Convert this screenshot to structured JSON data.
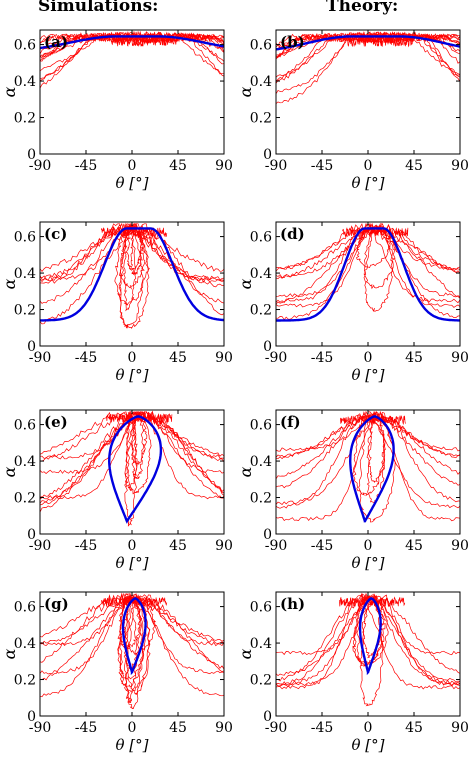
{
  "columns": {
    "left_title": "Simulations:",
    "right_title": "Theory:"
  },
  "colors": {
    "trajectories": "#ff0000",
    "curve": "#0000e0",
    "axis": "#000000"
  },
  "chart_data": [
    {
      "id": "a",
      "panel_label": "(a)",
      "type": "line",
      "xlabel": "θ [°]",
      "ylabel": "α",
      "xlim": [
        -90,
        90
      ],
      "ylim": [
        0,
        0.68
      ],
      "xticks": [
        "-90",
        "-45",
        "0",
        "45",
        "90"
      ],
      "yticks": [
        "0",
        "0.2",
        "0.4",
        "0.6"
      ],
      "blue_curve": {
        "shape": "band",
        "bottom": 0.56,
        "top": 0.645,
        "flat_from": -15,
        "flat_to": 25
      },
      "red_trajectories": {
        "count": 14,
        "seed": 11,
        "style": "broad",
        "center": 10,
        "peak": 0.64,
        "min_low": 0.2,
        "width": 60,
        "noise": 0.02
      }
    },
    {
      "id": "b",
      "panel_label": "(b)",
      "type": "line",
      "xlabel": "θ [°]",
      "ylabel": "α",
      "xlim": [
        -90,
        90
      ],
      "ylim": [
        0,
        0.68
      ],
      "xticks": [
        "-90",
        "-45",
        "0",
        "45",
        "90"
      ],
      "yticks": [
        "0",
        "0.2",
        "0.4",
        "0.6"
      ],
      "blue_curve": {
        "shape": "band",
        "bottom": 0.55,
        "top": 0.645,
        "flat_from": -15,
        "flat_to": 30
      },
      "red_trajectories": {
        "count": 14,
        "seed": 23,
        "style": "broad",
        "center": 10,
        "peak": 0.64,
        "min_low": 0.22,
        "width": 60,
        "noise": 0.02
      }
    },
    {
      "id": "c",
      "panel_label": "(c)",
      "type": "line",
      "xlabel": "θ [°]",
      "ylabel": "α",
      "xlim": [
        -90,
        90
      ],
      "ylim": [
        0,
        0.68
      ],
      "xticks": [
        "-90",
        "-45",
        "0",
        "45",
        "90"
      ],
      "yticks": [
        "0",
        "0.2",
        "0.4",
        "0.6"
      ],
      "blue_curve": {
        "shape": "bell",
        "base": 0.14,
        "top": 0.645,
        "flat_from": -5,
        "flat_to": 18,
        "width": 22
      },
      "red_trajectories": {
        "count": 14,
        "seed": 37,
        "style": "mixed",
        "center": 0,
        "peak": 0.65,
        "min_low": 0.1,
        "width": 30,
        "noise": 0.025
      }
    },
    {
      "id": "d",
      "panel_label": "(d)",
      "type": "line",
      "xlabel": "θ [°]",
      "ylabel": "α",
      "xlim": [
        -90,
        90
      ],
      "ylim": [
        0,
        0.68
      ],
      "xticks": [
        "-90",
        "-45",
        "0",
        "45",
        "90"
      ],
      "yticks": [
        "0",
        "0.2",
        "0.4",
        "0.6"
      ],
      "blue_curve": {
        "shape": "bell",
        "base": 0.14,
        "top": 0.645,
        "flat_from": -3,
        "flat_to": 15,
        "width": 20
      },
      "red_trajectories": {
        "count": 12,
        "seed": 51,
        "style": "mixed",
        "center": 5,
        "peak": 0.65,
        "min_low": 0.12,
        "width": 28,
        "noise": 0.02
      }
    },
    {
      "id": "e",
      "panel_label": "(e)",
      "type": "line",
      "xlabel": "θ [°]",
      "ylabel": "α",
      "xlim": [
        -90,
        90
      ],
      "ylim": [
        0,
        0.68
      ],
      "xticks": [
        "-90",
        "-45",
        "0",
        "45",
        "90"
      ],
      "yticks": [
        "0",
        "0.2",
        "0.4",
        "0.6"
      ],
      "blue_curve": {
        "shape": "loop",
        "cx": -5,
        "halfwidth": 25,
        "bottom": 0.07,
        "top": 0.645,
        "skew": 14
      },
      "red_trajectories": {
        "count": 14,
        "seed": 67,
        "style": "mixed",
        "center": 5,
        "peak": 0.66,
        "min_low": 0.05,
        "width": 32,
        "noise": 0.02
      }
    },
    {
      "id": "f",
      "panel_label": "(f)",
      "type": "line",
      "xlabel": "θ [°]",
      "ylabel": "α",
      "xlim": [
        -90,
        90
      ],
      "ylim": [
        0,
        0.68
      ],
      "xticks": [
        "-90",
        "-45",
        "0",
        "45",
        "90"
      ],
      "yticks": [
        "0",
        "0.2",
        "0.4",
        "0.6"
      ],
      "blue_curve": {
        "shape": "loop",
        "cx": -3,
        "halfwidth": 21,
        "bottom": 0.07,
        "top": 0.645,
        "skew": 12
      },
      "red_trajectories": {
        "count": 12,
        "seed": 79,
        "style": "mixed",
        "center": 3,
        "peak": 0.65,
        "min_low": 0.06,
        "width": 28,
        "noise": 0.02
      }
    },
    {
      "id": "g",
      "panel_label": "(g)",
      "type": "line",
      "xlabel": "θ [°]",
      "ylabel": "α",
      "xlim": [
        -90,
        90
      ],
      "ylim": [
        0,
        0.68
      ],
      "xticks": [
        "-90",
        "-45",
        "0",
        "45",
        "90"
      ],
      "yticks": [
        "0",
        "0.2",
        "0.4",
        "0.6"
      ],
      "blue_curve": {
        "shape": "loop",
        "cx": 0,
        "halfwidth": 11,
        "bottom": 0.24,
        "top": 0.645,
        "skew": 4
      },
      "red_trajectories": {
        "count": 16,
        "seed": 97,
        "style": "mixed",
        "center": 0,
        "peak": 0.65,
        "min_low": 0.03,
        "width": 32,
        "noise": 0.02
      }
    },
    {
      "id": "h",
      "panel_label": "(h)",
      "type": "line",
      "xlabel": "θ [°]",
      "ylabel": "α",
      "xlim": [
        -90,
        90
      ],
      "ylim": [
        0,
        0.68
      ],
      "xticks": [
        "-90",
        "-45",
        "0",
        "45",
        "90"
      ],
      "yticks": [
        "0",
        "0.2",
        "0.4",
        "0.6"
      ],
      "blue_curve": {
        "shape": "loop",
        "cx": 0,
        "halfwidth": 10,
        "bottom": 0.24,
        "top": 0.645,
        "skew": 4
      },
      "red_trajectories": {
        "count": 12,
        "seed": 113,
        "style": "mixed",
        "center": 2,
        "peak": 0.65,
        "min_low": 0.05,
        "width": 26,
        "noise": 0.02
      }
    }
  ]
}
